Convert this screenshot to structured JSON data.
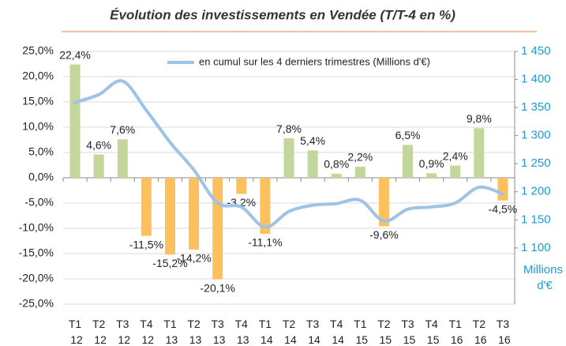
{
  "chart_data": {
    "type": "bar",
    "title": "Évolution des investissements en Vendée (T/T-4 en %)",
    "categories": [
      "T1 12",
      "T2 12",
      "T3 12",
      "T4 12",
      "T1 13",
      "T2 13",
      "T3 13",
      "T4 13",
      "T1 14",
      "T2 14",
      "T3 14",
      "T4 14",
      "T1 15",
      "T2 15",
      "T3 15",
      "T4 15",
      "T1 16",
      "T2 16",
      "T3 16"
    ],
    "values": [
      22.4,
      4.6,
      7.6,
      -11.5,
      -15.2,
      -14.2,
      -20.1,
      -3.2,
      -11.1,
      7.8,
      5.4,
      0.8,
      2.2,
      -9.6,
      6.5,
      0.9,
      2.4,
      9.8,
      -4.5
    ],
    "value_labels": [
      "22,4%",
      "4,6%",
      "7,6%",
      "-11,5%",
      "-15,2%",
      "-14,2%",
      "-20,1%",
      "-3,2%",
      "-11,1%",
      "7,8%",
      "5,4%",
      "0,8%",
      "2,2%",
      "-9,6%",
      "6,5%",
      "0,9%",
      "2,4%",
      "9,8%",
      "-4,5%"
    ],
    "colors": [
      "#c3d69b",
      "#c3d69b",
      "#c3d69b",
      "#fcc05c",
      "#fcc05c",
      "#fcc05c",
      "#fcc05c",
      "#fcc05c",
      "#fcc05c",
      "#c3d69b",
      "#c3d69b",
      "#c3d69b",
      "#c3d69b",
      "#fcc05c",
      "#c3d69b",
      "#c3d69b",
      "#c3d69b",
      "#c3d69b",
      "#fcc05c"
    ],
    "ylim": [
      -25,
      25
    ],
    "yticks": [
      {
        "value": 25,
        "label": "25,0%"
      },
      {
        "value": 20,
        "label": "20,0%"
      },
      {
        "value": 15,
        "label": "15,0%"
      },
      {
        "value": 10,
        "label": "10,0%"
      },
      {
        "value": 5,
        "label": "5,0%"
      },
      {
        "value": 0,
        "label": "0,0%"
      },
      {
        "value": -5,
        "label": "-5,0%"
      },
      {
        "value": -10,
        "label": "-10,0%"
      },
      {
        "value": -15,
        "label": "-15,0%"
      },
      {
        "value": -20,
        "label": "-20,0%"
      },
      {
        "value": -25,
        "label": "-25,0%"
      }
    ],
    "y2lim": [
      1000,
      1450
    ],
    "y2ticks": [
      {
        "value": 1450,
        "label": "1 450"
      },
      {
        "value": 1400,
        "label": "1 400"
      },
      {
        "value": 1350,
        "label": "1 350"
      },
      {
        "value": 1300,
        "label": "1 300"
      },
      {
        "value": 1250,
        "label": "1 250"
      },
      {
        "value": 1200,
        "label": "1 200"
      },
      {
        "value": 1150,
        "label": "1 150"
      },
      {
        "value": 1100,
        "label": "1 100"
      }
    ],
    "y2_label": "Millions d'€",
    "grid": true,
    "series": [
      {
        "name": "en cumul sur les 4 derniers trimestres (Millions d'€)",
        "color": "#9dc3e6",
        "axis": "y2",
        "values": [
          1359,
          1373,
          1397,
          1345,
          1288,
          1239,
          1180,
          1173,
          1137,
          1165,
          1176,
          1179,
          1185,
          1148,
          1169,
          1173,
          1180,
          1208,
          1196
        ]
      }
    ]
  }
}
